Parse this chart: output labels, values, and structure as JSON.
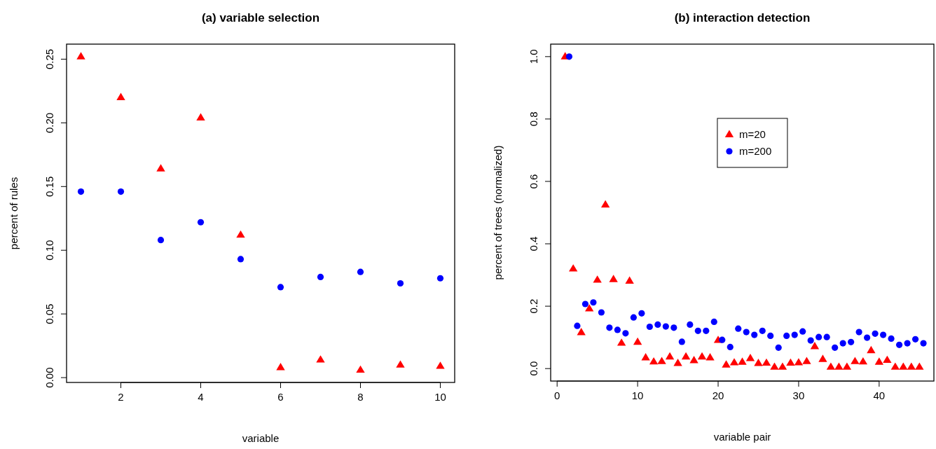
{
  "chart_data": [
    {
      "type": "scatter",
      "title": "(a) variable selection",
      "xlabel": "variable",
      "ylabel": "percent of rules",
      "xlim": [
        0.64,
        10.36
      ],
      "ylim": [
        -0.0038,
        0.2618
      ],
      "xticks": [
        2,
        4,
        6,
        8,
        10
      ],
      "yticks": [
        {
          "value": 0,
          "label": "0.00"
        },
        0.05,
        {
          "value": 0.1,
          "label": "0.10"
        },
        0.15,
        {
          "value": 0.2,
          "label": "0.20"
        },
        0.25
      ],
      "grid": false,
      "legend": false,
      "series": [
        {
          "color": "#ff0000",
          "marker": "triangle",
          "x": [
            1,
            2,
            3,
            4,
            5,
            6,
            7,
            8,
            9,
            10
          ],
          "values": [
            0.252,
            0.22,
            0.164,
            0.204,
            0.112,
            0.008,
            0.014,
            0.006,
            0.01,
            0.009
          ]
        },
        {
          "color": "#0000ff",
          "marker": "circle",
          "x": [
            1,
            2,
            3,
            4,
            5,
            6,
            7,
            8,
            9,
            10
          ],
          "values": [
            0.146,
            0.146,
            0.108,
            0.122,
            0.093,
            0.071,
            0.079,
            0.083,
            0.074,
            0.078
          ]
        }
      ]
    },
    {
      "type": "scatter",
      "title": "(b) interaction detection",
      "xlabel": "variable pair",
      "ylabel": "percent of trees (normalized)",
      "xlim": [
        -0.8,
        46.8
      ],
      "ylim": [
        -0.04,
        1.04
      ],
      "xticks": [
        0,
        10,
        20,
        30,
        40
      ],
      "yticks": [
        {
          "value": 0,
          "label": "0.0"
        },
        0.2,
        0.4,
        0.6,
        0.8,
        {
          "value": 1,
          "label": "1.0"
        }
      ],
      "grid": false,
      "legend": "top right",
      "series": [
        {
          "name": "m=20",
          "color": "#ff0000",
          "marker": "triangle",
          "x": [
            1,
            2,
            3,
            4,
            5,
            6,
            7,
            8,
            9,
            10,
            11,
            12,
            13,
            14,
            15,
            16,
            17,
            18,
            19,
            20,
            21,
            22,
            23,
            24,
            25,
            26,
            27,
            28,
            29,
            30,
            31,
            32,
            33,
            34,
            35,
            36,
            37,
            38,
            39,
            40,
            41,
            42,
            43,
            44,
            45
          ],
          "values": [
            1.0,
            0.32,
            0.116,
            0.192,
            0.284,
            0.525,
            0.286,
            0.082,
            0.281,
            0.085,
            0.035,
            0.022,
            0.023,
            0.038,
            0.017,
            0.038,
            0.026,
            0.038,
            0.035,
            0.091,
            0.012,
            0.019,
            0.021,
            0.033,
            0.017,
            0.018,
            0.005,
            0.005,
            0.018,
            0.019,
            0.023,
            0.071,
            0.03,
            0.005,
            0.005,
            0.005,
            0.023,
            0.022,
            0.058,
            0.021,
            0.027,
            0.005,
            0.005,
            0.005,
            0.005
          ]
        },
        {
          "name": "m=200",
          "color": "#0000ff",
          "marker": "circle",
          "x": [
            1.5,
            2.5,
            3.5,
            4.5,
            5.5,
            6.5,
            7.5,
            8.5,
            9.5,
            10.5,
            11.5,
            12.5,
            13.5,
            14.5,
            15.5,
            16.5,
            17.5,
            18.5,
            19.5,
            20.5,
            21.5,
            22.5,
            23.5,
            24.5,
            25.5,
            26.5,
            27.5,
            28.5,
            29.5,
            30.5,
            31.5,
            32.5,
            33.5,
            34.5,
            35.5,
            36.5,
            37.5,
            38.5,
            39.5,
            40.5,
            41.5,
            42.5,
            43.5,
            44.5,
            45.5
          ],
          "values": [
            1.0,
            0.137,
            0.207,
            0.212,
            0.18,
            0.131,
            0.124,
            0.113,
            0.164,
            0.177,
            0.134,
            0.141,
            0.135,
            0.131,
            0.086,
            0.141,
            0.121,
            0.121,
            0.15,
            0.092,
            0.069,
            0.128,
            0.117,
            0.108,
            0.121,
            0.105,
            0.067,
            0.105,
            0.108,
            0.119,
            0.09,
            0.101,
            0.101,
            0.067,
            0.081,
            0.085,
            0.117,
            0.099,
            0.112,
            0.108,
            0.096,
            0.076,
            0.081,
            0.094,
            0.081
          ]
        }
      ]
    }
  ]
}
